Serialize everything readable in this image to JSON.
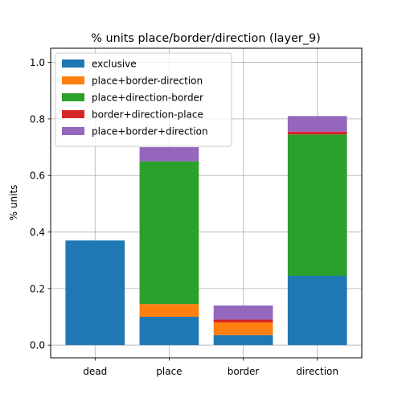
{
  "chart_data": {
    "type": "bar",
    "stacked": true,
    "title": "% units place/border/direction (layer_9)",
    "xlabel": "",
    "ylabel": "% units",
    "categories": [
      "dead",
      "place",
      "border",
      "direction"
    ],
    "ylim": [
      -0.045,
      1.05
    ],
    "yticks": [
      "0.0",
      "0.2",
      "0.4",
      "0.6",
      "0.8",
      "1.0"
    ],
    "grid": true,
    "legend_position": "top-left",
    "series": [
      {
        "name": "exclusive",
        "color": "#1f77b4",
        "values": [
          0.37,
          0.1,
          0.035,
          0.245
        ]
      },
      {
        "name": "place+border-direction",
        "color": "#ff7f0e",
        "values": [
          0.0,
          0.045,
          0.045,
          0.0
        ]
      },
      {
        "name": "place+direction-border",
        "color": "#2ca02c",
        "values": [
          0.0,
          0.505,
          0.0,
          0.5
        ]
      },
      {
        "name": "border+direction-place",
        "color": "#d62728",
        "values": [
          0.0,
          0.0,
          0.01,
          0.01
        ]
      },
      {
        "name": "place+border+direction",
        "color": "#9467bd",
        "values": [
          0.0,
          0.05,
          0.05,
          0.055
        ]
      }
    ]
  }
}
